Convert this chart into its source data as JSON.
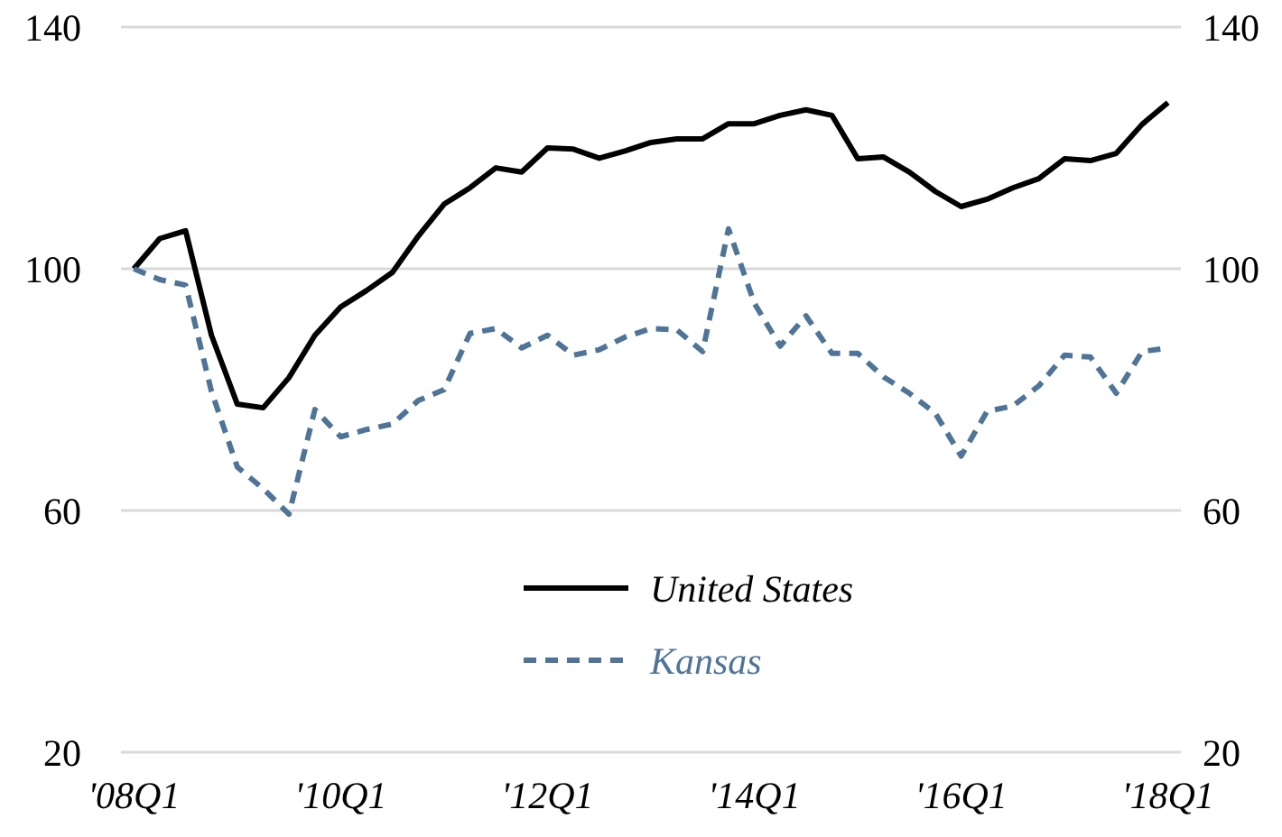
{
  "chart_data": {
    "type": "line",
    "categories": [
      "'08Q1",
      null,
      null,
      null,
      null,
      null,
      null,
      null,
      "'10Q1",
      null,
      null,
      null,
      null,
      null,
      null,
      null,
      "'12Q1",
      null,
      null,
      null,
      null,
      null,
      null,
      null,
      "'14Q1",
      null,
      null,
      null,
      null,
      null,
      null,
      null,
      "'16Q1",
      null,
      null,
      null,
      null,
      null,
      null,
      null,
      "'18Q1"
    ],
    "series": [
      {
        "name": "United States",
        "color": "#000000",
        "line_style": "solid",
        "values": [
          100,
          105,
          106.3,
          89,
          77.6,
          77,
          82,
          89,
          93.7,
          96.4,
          99.4,
          105.4,
          110.7,
          113.4,
          116.7,
          116,
          120,
          119.8,
          118.3,
          119.5,
          120.9,
          121.5,
          121.5,
          124,
          124,
          125.4,
          126.3,
          125.4,
          118.2,
          118.5,
          116,
          112.8,
          110.3,
          111.5,
          113.4,
          114.9,
          118.2,
          117.9,
          119.1,
          123.9,
          127.5
        ]
      },
      {
        "name": "Kansas",
        "color": "#4f7497",
        "line_style": "dashed",
        "values": [
          100,
          98.2,
          97.3,
          79.7,
          67.2,
          63.6,
          59.4,
          76.7,
          72.2,
          73.4,
          74.3,
          78.2,
          80,
          89.3,
          90.1,
          86.9,
          89,
          85.7,
          86.6,
          88.7,
          90.1,
          89.9,
          86.3,
          106.6,
          94.3,
          87.2,
          92.2,
          86,
          86,
          82.1,
          79.4,
          76.1,
          69,
          76.4,
          77.3,
          80.6,
          85.7,
          85.4,
          79.4,
          86.3,
          86.9
        ]
      }
    ],
    "ylim": [
      20,
      140
    ],
    "yticks": [
      20,
      60,
      100,
      140
    ],
    "y2lim": [
      20,
      140
    ],
    "y2ticks": [
      20,
      60,
      100,
      140
    ],
    "grid": "y",
    "legend": "bottom",
    "marker": "none"
  }
}
